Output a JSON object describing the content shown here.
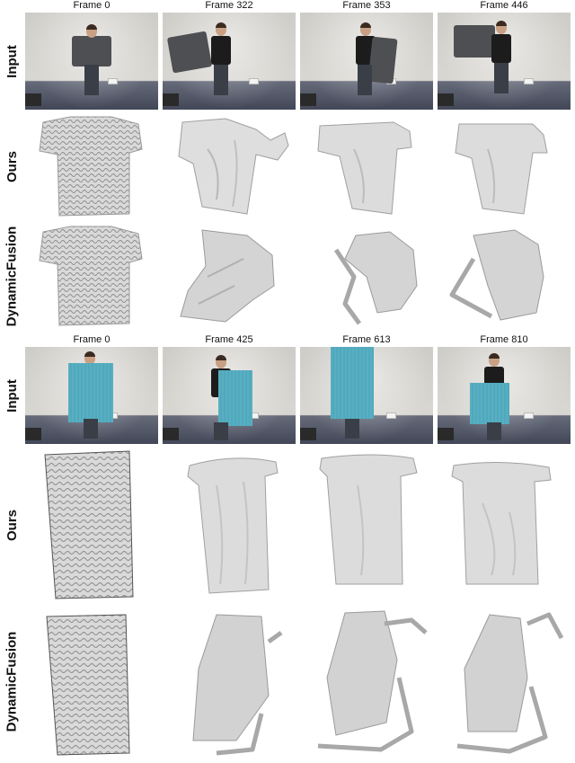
{
  "colors": {
    "mesh": "#d6d6d6",
    "mesh_shadow": "#9a9a9a",
    "towel": "#4fa9bd",
    "shirt": "#4e4f52"
  },
  "rows": {
    "input": "Input",
    "ours": "Ours",
    "dynamicfusion": "DynamicFusion"
  },
  "shirt_sequence": {
    "frames": [
      "Frame 0",
      "Frame 322",
      "Frame 353",
      "Frame 446"
    ]
  },
  "towel_sequence": {
    "frames": [
      "Frame 0",
      "Frame 425",
      "Frame 613",
      "Frame 810"
    ]
  }
}
